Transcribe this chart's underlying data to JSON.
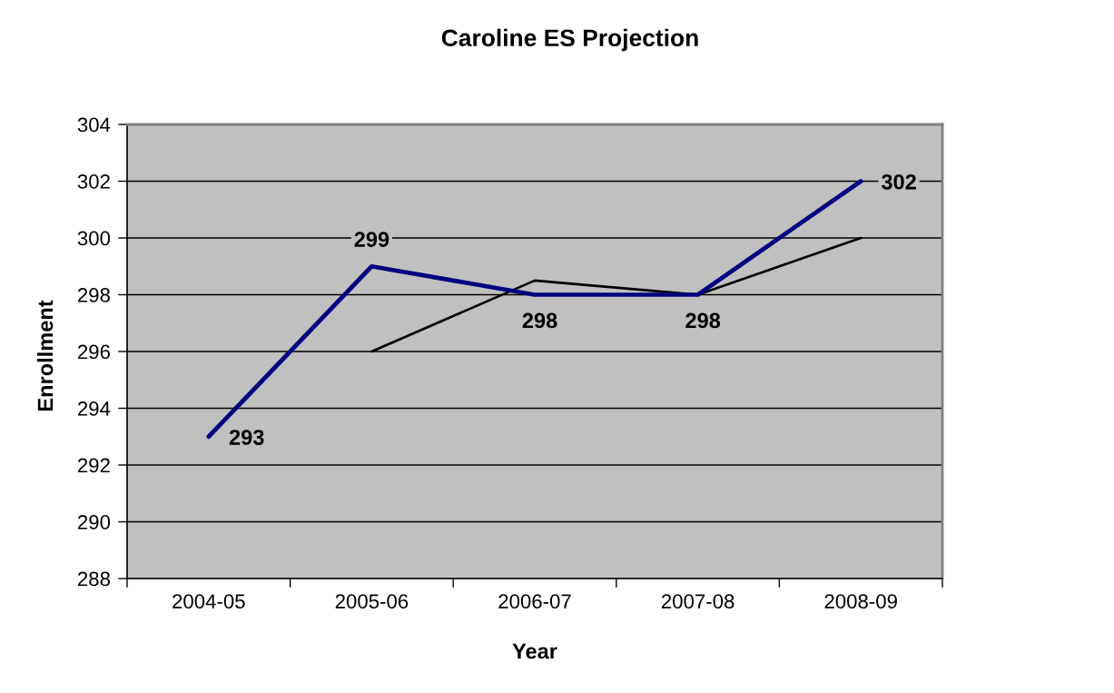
{
  "chart_data": {
    "type": "line",
    "title": "Caroline ES Projection",
    "xlabel": "Year",
    "ylabel": "Enrollment",
    "categories": [
      "2004-05",
      "2005-06",
      "2006-07",
      "2007-08",
      "2008-09"
    ],
    "series": [
      {
        "color": "#000080",
        "values": [
          293,
          299,
          298,
          298,
          302
        ],
        "value_labels": [
          "293",
          "299",
          "298",
          "298",
          "302"
        ]
      },
      {
        "color": "#000000",
        "values": [
          null,
          296,
          298.5,
          298,
          300
        ]
      }
    ],
    "ylim": [
      288,
      304
    ],
    "yticks": [
      288,
      290,
      292,
      294,
      296,
      298,
      300,
      302,
      304
    ],
    "grid": "y",
    "marker": "none",
    "line_style": "solid"
  }
}
